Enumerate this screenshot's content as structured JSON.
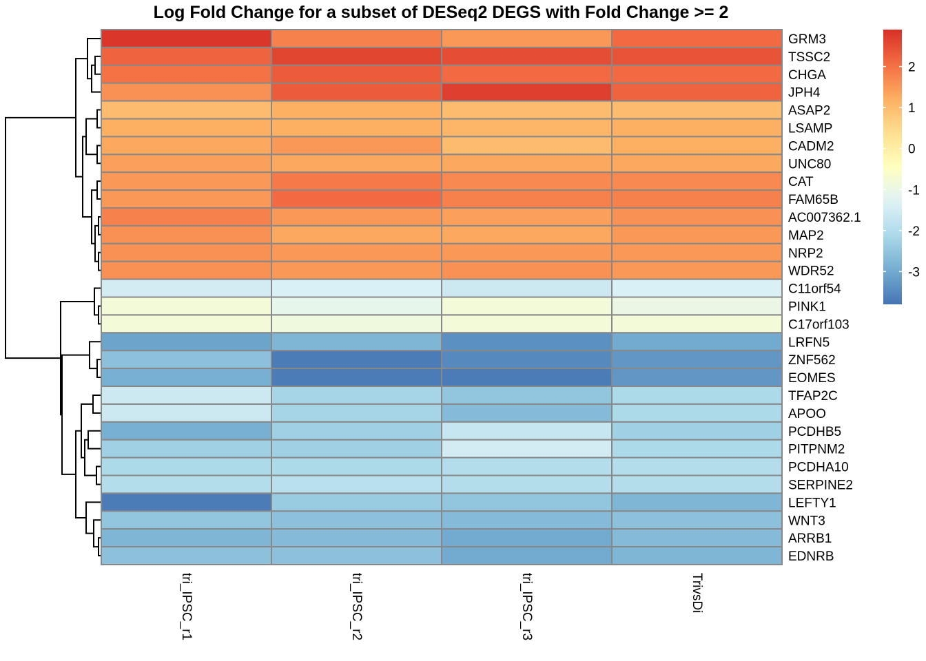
{
  "chart_data": {
    "type": "heatmap",
    "title": "Log Fold Change for a subset of DESeq2 DEGS with Fold Change >= 2",
    "columns": [
      "tri_IPSC_r1",
      "tri_IPSC_r2",
      "tri_IPSC_r3",
      "TrivsDi"
    ],
    "rows": [
      "GRM3",
      "TSSC2",
      "CHGA",
      "JPH4",
      "ASAP2",
      "LSAMP",
      "CADM2",
      "UNC80",
      "CAT",
      "FAM65B",
      "AC007362.1",
      "MAP2",
      "NRP2",
      "WDR52",
      "C11orf54",
      "PINK1",
      "C17orf103",
      "LRFN5",
      "ZNF562",
      "EOMES",
      "TFAP2C",
      "APOO",
      "PCDHB5",
      "PITPNM2",
      "PCDHA10",
      "SERPINE2",
      "LEFTY1",
      "WNT3",
      "ARRB1",
      "EDNRB"
    ],
    "values": [
      [
        2.8,
        1.8,
        1.5,
        2.1
      ],
      [
        2.2,
        2.6,
        2.5,
        2.4
      ],
      [
        2.0,
        2.3,
        2.1,
        2.1
      ],
      [
        1.6,
        2.3,
        2.7,
        2.2
      ],
      [
        1.0,
        1.2,
        1.0,
        1.0
      ],
      [
        1.2,
        1.2,
        1.1,
        1.2
      ],
      [
        1.3,
        1.5,
        1.0,
        1.2
      ],
      [
        1.4,
        1.3,
        1.3,
        1.3
      ],
      [
        1.5,
        1.9,
        1.7,
        1.7
      ],
      [
        1.5,
        2.1,
        1.8,
        1.8
      ],
      [
        1.8,
        1.5,
        1.4,
        1.6
      ],
      [
        1.6,
        1.3,
        1.3,
        1.5
      ],
      [
        1.6,
        1.5,
        1.5,
        1.5
      ],
      [
        1.6,
        1.5,
        1.6,
        1.5
      ],
      [
        -1.5,
        -1.4,
        -1.6,
        -1.4
      ],
      [
        -0.8,
        -1.1,
        -0.8,
        -1.0
      ],
      [
        -0.8,
        -0.9,
        -0.8,
        -0.8
      ],
      [
        -3.1,
        -2.8,
        -3.4,
        -3.0
      ],
      [
        -2.6,
        -3.7,
        -3.5,
        -3.3
      ],
      [
        -2.9,
        -3.7,
        -3.7,
        -3.3
      ],
      [
        -1.6,
        -2.2,
        -2.5,
        -2.1
      ],
      [
        -1.6,
        -2.2,
        -2.7,
        -2.1
      ],
      [
        -2.9,
        -2.3,
        -1.7,
        -2.3
      ],
      [
        -2.3,
        -2.3,
        -1.5,
        -2.1
      ],
      [
        -2.1,
        -2.1,
        -2.0,
        -2.0
      ],
      [
        -2.0,
        -1.9,
        -2.0,
        -2.0
      ],
      [
        -3.7,
        -2.4,
        -2.5,
        -2.8
      ],
      [
        -2.5,
        -2.6,
        -2.7,
        -2.6
      ],
      [
        -2.8,
        -2.7,
        -3.0,
        -2.7
      ],
      [
        -2.6,
        -2.6,
        -3.0,
        -2.8
      ]
    ],
    "legend": {
      "ticks": [
        2,
        1,
        0,
        -1,
        -2,
        -3
      ],
      "tick_labels": [
        "2",
        "1",
        "0",
        "-1",
        "-2",
        "-3"
      ],
      "range": [
        -3.8,
        2.9
      ],
      "low_color": "#4575B4",
      "mid_color": "#FFFFBF",
      "high_color": "#D73027"
    },
    "cell_border_color": "#888888",
    "row_dendrogram": true
  }
}
